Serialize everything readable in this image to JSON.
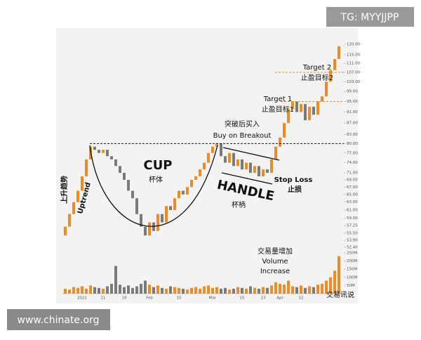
{
  "watermark_top": "TG: MYYJJPP",
  "watermark_bottom": "www.chinate.org",
  "chart_data": {
    "type": "candlestick",
    "log": true,
    "up_color": "#f08a24",
    "down_color": "#7a7a7a",
    "volume_color": "#f08a24",
    "categories": [
      null,
      null,
      null,
      null,
      "2021",
      null,
      null,
      null,
      null,
      "11",
      null,
      null,
      null,
      null,
      "19",
      null,
      null,
      null,
      null,
      null,
      "Feb",
      null,
      null,
      null,
      null,
      null,
      null,
      "15",
      null,
      null,
      null,
      null,
      null,
      null,
      null,
      "Mar",
      null,
      null,
      null,
      null,
      null,
      null,
      "15",
      null,
      null,
      null,
      null,
      "23",
      null,
      null,
      null,
      "Apr",
      null,
      null,
      null,
      null,
      "12",
      null,
      null,
      null,
      null,
      null,
      null,
      null,
      null,
      null
    ],
    "open": [
      55,
      57,
      60,
      63,
      66,
      70,
      75,
      79,
      78,
      77,
      78,
      76,
      75,
      73,
      71,
      69,
      66,
      64,
      60,
      57,
      55,
      58,
      56,
      60,
      58,
      62,
      61,
      64,
      66,
      65,
      67,
      69,
      70,
      72,
      74,
      77,
      79,
      80,
      76,
      74,
      77,
      73,
      75,
      72,
      74,
      71,
      73,
      70,
      72,
      71,
      75,
      79,
      82,
      87,
      92,
      95,
      91,
      94,
      88,
      93,
      90,
      95,
      97,
      103,
      108,
      113
    ],
    "close": [
      57,
      60,
      63,
      66,
      70,
      75,
      79,
      78,
      77,
      78,
      76,
      75,
      73,
      71,
      69,
      66,
      64,
      60,
      57,
      55,
      58,
      56,
      60,
      58,
      62,
      61,
      64,
      66,
      65,
      67,
      69,
      70,
      72,
      74,
      77,
      79,
      80,
      76,
      74,
      77,
      73,
      75,
      72,
      74,
      71,
      73,
      70,
      72,
      71,
      75,
      79,
      82,
      87,
      92,
      95,
      91,
      94,
      88,
      93,
      90,
      95,
      97,
      103,
      108,
      113,
      119
    ],
    "volume": [
      30,
      25,
      40,
      35,
      45,
      30,
      50,
      40,
      35,
      30,
      45,
      60,
      170,
      55,
      40,
      50,
      35,
      45,
      60,
      80,
      55,
      40,
      50,
      35,
      30,
      45,
      40,
      35,
      30,
      25,
      35,
      40,
      30,
      45,
      50,
      35,
      40,
      30,
      35,
      25,
      30,
      40,
      35,
      30,
      45,
      35,
      30,
      40,
      35,
      50,
      70,
      60,
      55,
      80,
      45,
      40,
      50,
      35,
      45,
      40,
      55,
      60,
      80,
      100,
      140,
      230
    ],
    "ylim": [
      52.4,
      120
    ],
    "yticks": [
      {
        "value": 120,
        "label": "120.00"
      },
      {
        "value": 115,
        "label": "115.00"
      },
      {
        "value": 111,
        "label": "111.00"
      },
      {
        "value": 107,
        "label": "107.00"
      },
      {
        "value": 103,
        "label": "103.00"
      },
      {
        "value": 99,
        "label": "99.00"
      },
      {
        "value": 95,
        "label": "95.00"
      },
      {
        "value": 91,
        "label": "91.00"
      },
      {
        "value": 87,
        "label": "87.00"
      },
      {
        "value": 83,
        "label": "83.00"
      },
      {
        "value": 80,
        "label": "80.00"
      },
      {
        "value": 77,
        "label": "77.00"
      },
      {
        "value": 74,
        "label": "74.00"
      },
      {
        "value": 71,
        "label": "71.00"
      },
      {
        "value": 69,
        "label": "69.00"
      },
      {
        "value": 67,
        "label": "67.00"
      },
      {
        "value": 65,
        "label": "65.00"
      },
      {
        "value": 63,
        "label": "63.00"
      },
      {
        "value": 61,
        "label": "61.00"
      },
      {
        "value": 59,
        "label": "59.00"
      },
      {
        "value": 57.25,
        "label": "57.25"
      },
      {
        "value": 55.5,
        "label": "55.50"
      },
      {
        "value": 53.9,
        "label": "53.90"
      },
      {
        "value": 52.4,
        "label": "52.40"
      }
    ],
    "volume_ylim": [
      0,
      250
    ],
    "volume_yticks": [
      {
        "value": 250,
        "label": "250M"
      },
      {
        "value": 200,
        "label": "200M"
      },
      {
        "value": 150,
        "label": "150M"
      },
      {
        "value": 100,
        "label": "100M"
      },
      {
        "value": 50,
        "label": "50M"
      }
    ],
    "breakout_level": 80,
    "target1_level": 95,
    "target2_level": 107,
    "annotations": {
      "cup": "CUP",
      "cup_cn": "杯体",
      "handle": "HANDLE",
      "handle_cn": "杯柄",
      "uptrend_cn": "上升趋势",
      "uptrend": "Uptrend",
      "breakout_cn": "突破后买入",
      "breakout": "Buy on Breakout",
      "target1": "Target 1",
      "target1_cn": "止盈目标1",
      "target2": "Target 2",
      "target2_cn": "止盈目标2",
      "stop_loss": "Stop Loss",
      "stop_loss_cn": "止损",
      "volume_cn": "交易量增加",
      "volume": "Volume",
      "increase": "Increase",
      "source": "交易讯说"
    }
  }
}
